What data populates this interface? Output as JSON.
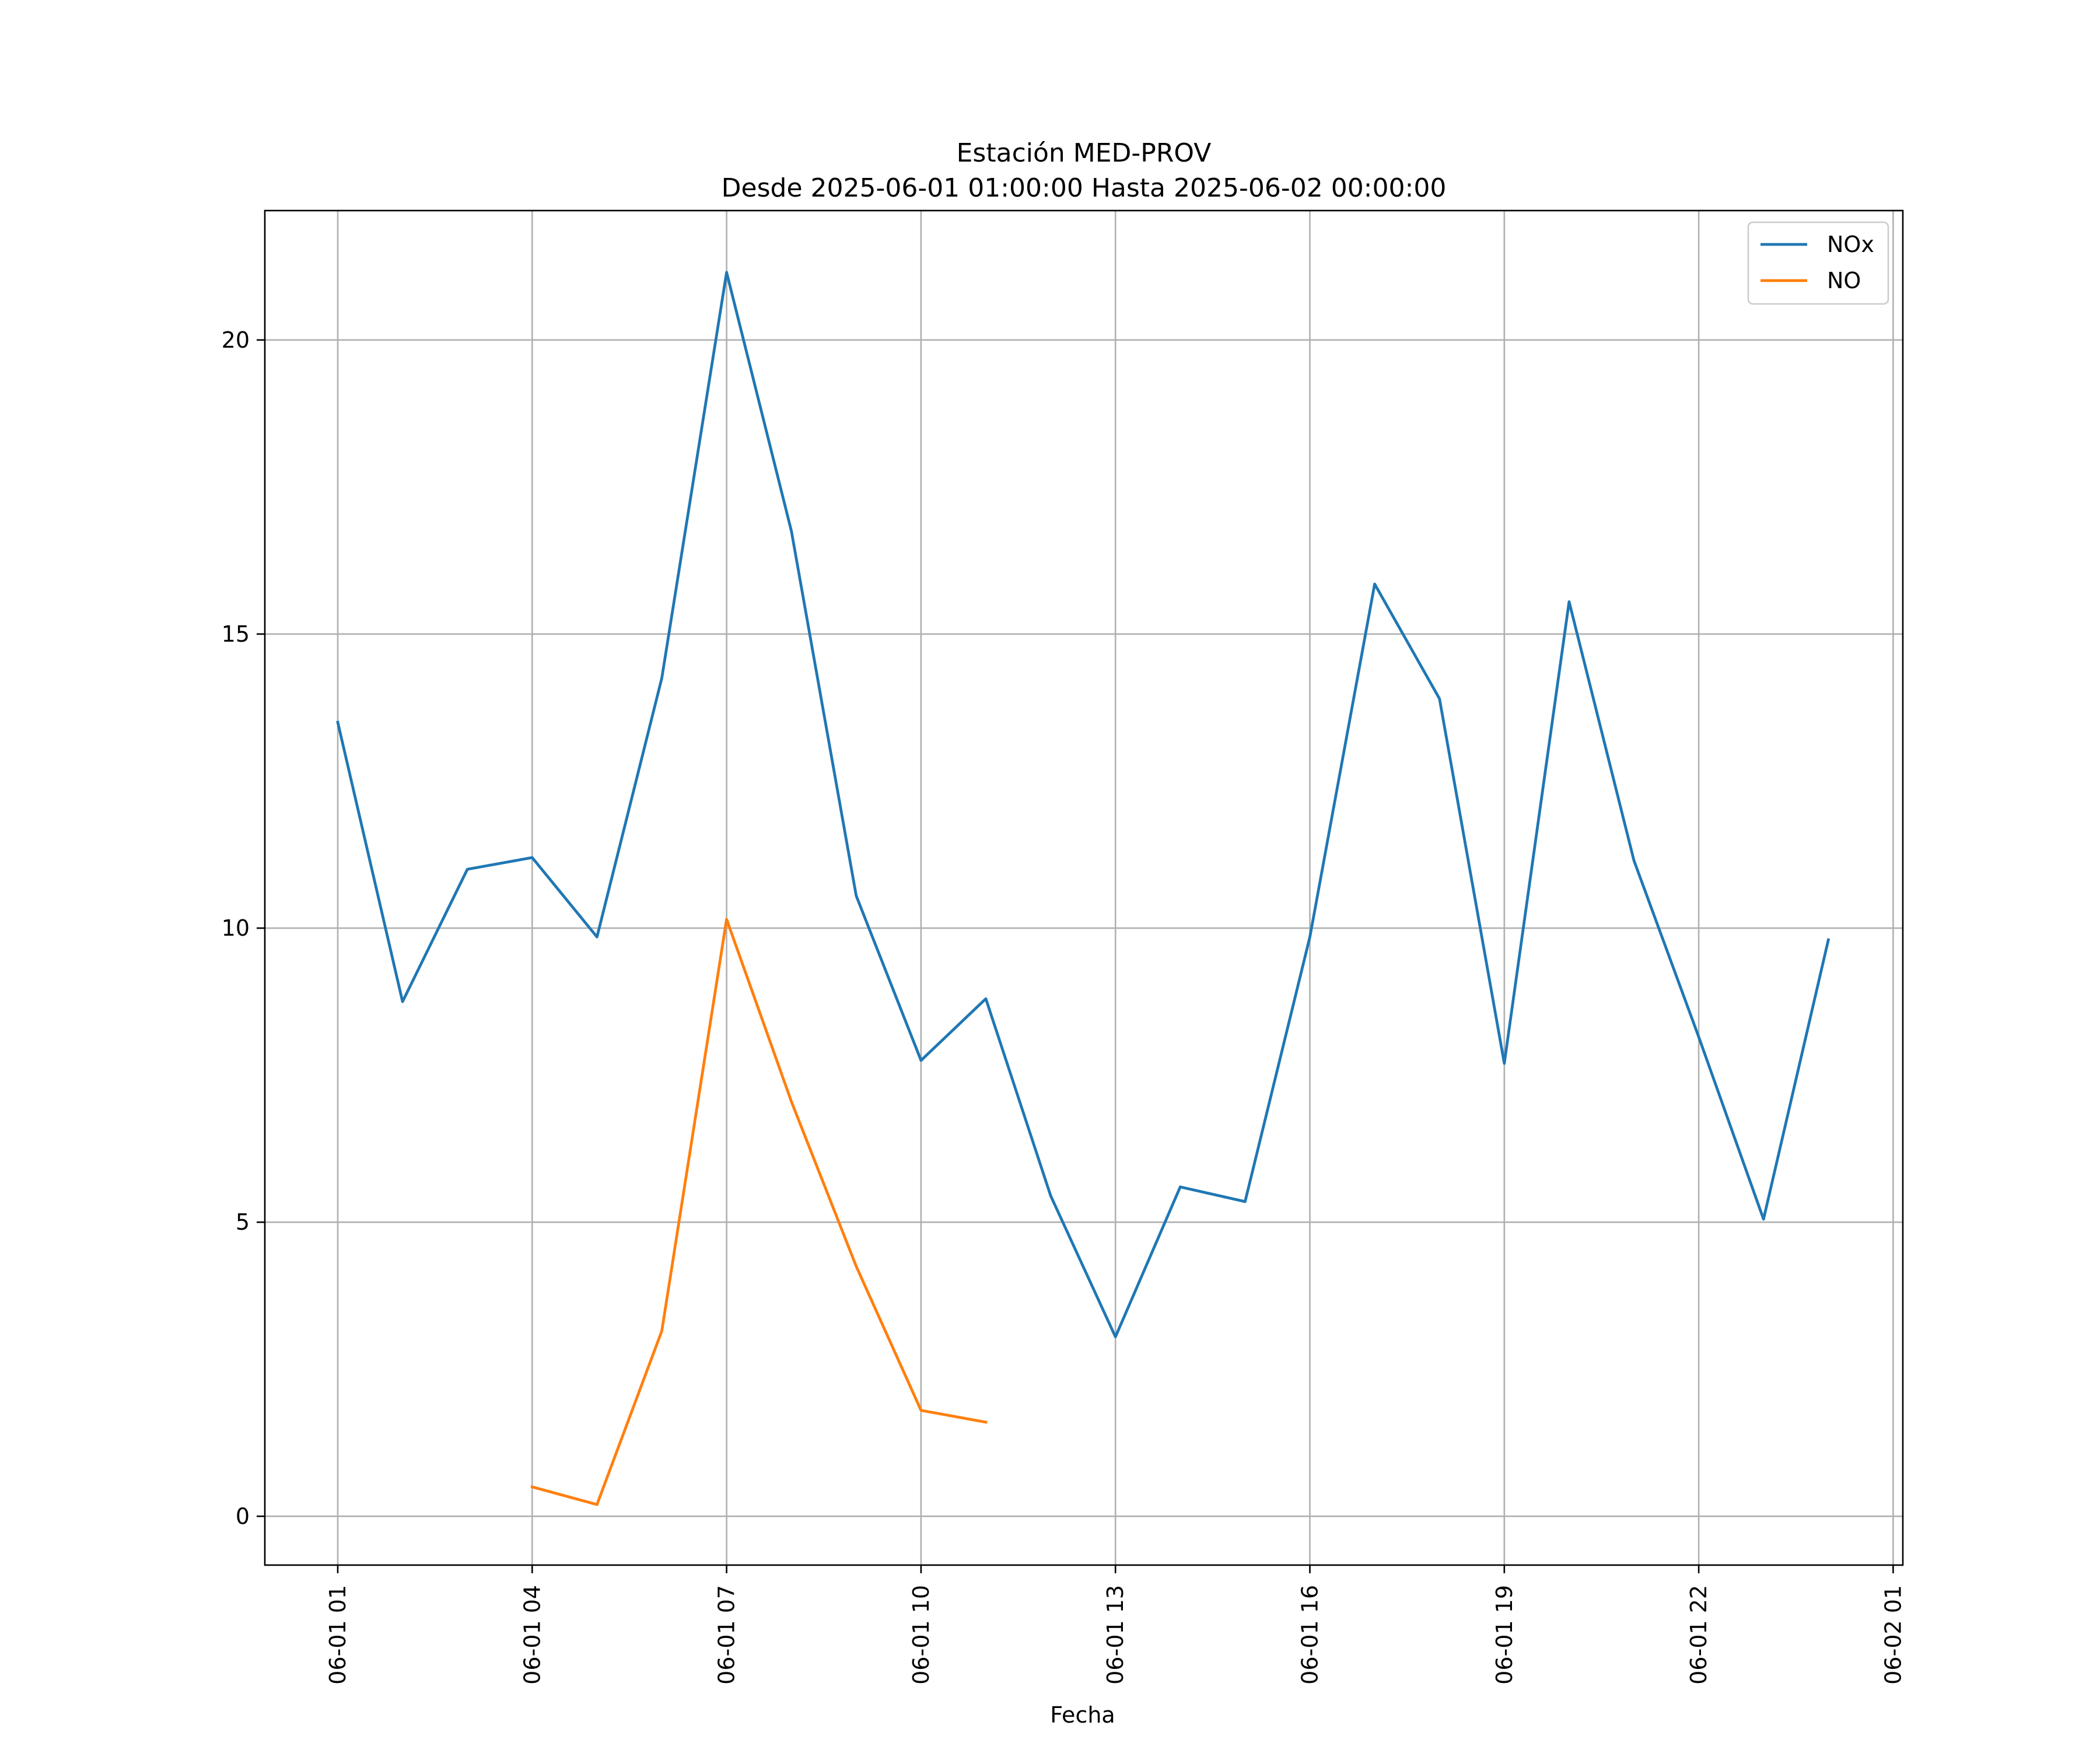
{
  "chart_data": {
    "type": "line",
    "title": "Estación MED-PROV",
    "subtitle": "Desde 2025-06-01 01:00:00 Hasta 2025-06-02 00:00:00",
    "xlabel": "Fecha",
    "ylabel": "",
    "x": [
      "06-01 01",
      "06-01 02",
      "06-01 03",
      "06-01 04",
      "06-01 05",
      "06-01 06",
      "06-01 07",
      "06-01 08",
      "06-01 09",
      "06-01 10",
      "06-01 11",
      "06-01 12",
      "06-01 13",
      "06-01 14",
      "06-01 15",
      "06-01 16",
      "06-01 17",
      "06-01 18",
      "06-01 19",
      "06-01 20",
      "06-01 21",
      "06-01 22",
      "06-01 23",
      "06-02 00"
    ],
    "x_ticks": [
      "06-01 01",
      "06-01 04",
      "06-01 07",
      "06-01 10",
      "06-01 13",
      "06-01 16",
      "06-01 19",
      "06-01 22",
      "06-02 01"
    ],
    "y_ticks": [
      0,
      5,
      10,
      15,
      20
    ],
    "ylim": [
      -0.83,
      22.2
    ],
    "grid": true,
    "legend_position": "top-right",
    "series": [
      {
        "name": "NOx",
        "color": "#1f77b4",
        "values": [
          13.5,
          8.75,
          11.0,
          11.2,
          9.85,
          14.25,
          21.15,
          16.75,
          10.55,
          7.75,
          8.8,
          5.45,
          3.05,
          5.6,
          5.35,
          9.85,
          15.85,
          13.9,
          7.7,
          15.55,
          11.15,
          8.15,
          5.05,
          9.8
        ]
      },
      {
        "name": "NO",
        "color": "#ff7f0e",
        "values": [
          null,
          null,
          null,
          0.5,
          0.2,
          3.15,
          10.15,
          7.05,
          4.25,
          1.8,
          1.6,
          null,
          null,
          null,
          null,
          null,
          null,
          null,
          null,
          null,
          null,
          null,
          null,
          null
        ]
      }
    ]
  }
}
